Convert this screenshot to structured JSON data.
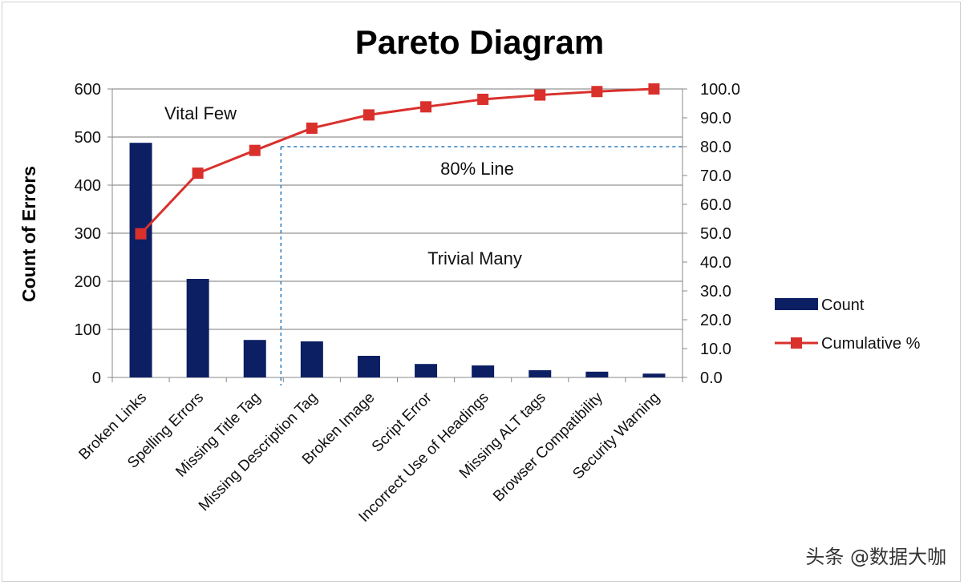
{
  "chart_data": {
    "type": "bar",
    "title": "Pareto Diagram",
    "xlabel": "",
    "ylabel": "Count of Errors",
    "ylim": [
      0,
      600
    ],
    "y2lim": [
      0,
      100
    ],
    "yticks": [
      "0",
      "100",
      "200",
      "300",
      "400",
      "500",
      "600"
    ],
    "y2ticks": [
      "0.0",
      "10.0",
      "20.0",
      "30.0",
      "40.0",
      "50.0",
      "60.0",
      "70.0",
      "80.0",
      "90.0",
      "100.0"
    ],
    "categories": [
      "Broken Links",
      "Spelling Errors",
      "Missing Title Tag",
      "Missing Description Tag",
      "Broken Image",
      "Script Error",
      "Incorrect Use of Headings",
      "Missing ALT tags",
      "Browser Compatibility",
      "Security Warning"
    ],
    "series": [
      {
        "name": "Count",
        "type": "bar",
        "axis": "left",
        "color": "#0d1f63",
        "values": [
          488,
          205,
          78,
          75,
          45,
          28,
          25,
          15,
          12,
          8
        ]
      },
      {
        "name": "Cumulative %",
        "type": "line",
        "axis": "right",
        "color": "#d9302c",
        "values": [
          49.8,
          70.8,
          78.7,
          86.4,
          91.0,
          93.8,
          96.4,
          97.9,
          99.1,
          100.0
        ]
      }
    ],
    "annotations": {
      "vital_few": "Vital Few",
      "line_80": "80% Line",
      "trivial_many": "Trivial Many"
    },
    "threshold_percent": 80,
    "threshold_after_category_index": 2,
    "legend_position": "right",
    "grid": true
  },
  "watermark": "头条 @数据大咖"
}
